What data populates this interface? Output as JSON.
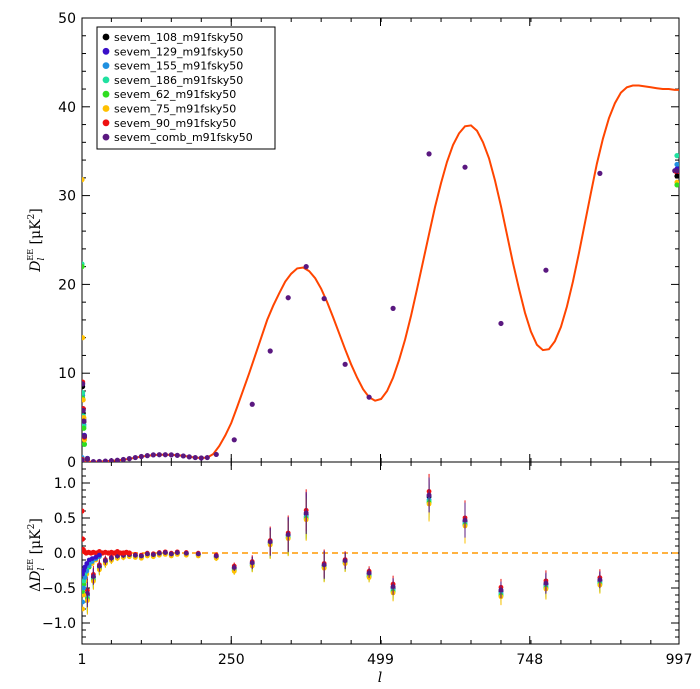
{
  "chart_data": [
    {
      "type": "line",
      "panel": "top",
      "ylabel": "D_l^EE [μK^2]",
      "xlim": [
        1,
        997
      ],
      "ylim": [
        0,
        50
      ],
      "yticks": [
        0,
        10,
        20,
        30,
        40,
        50
      ],
      "xticks": [
        1,
        250,
        499,
        748,
        997
      ],
      "xticklabels": [
        "1",
        "250",
        "499",
        "748",
        "997"
      ],
      "grid": false,
      "legend_position": "top-left",
      "model_color": "#ff4500",
      "model": {
        "x": [
          1,
          2,
          5,
          10,
          20,
          30,
          40,
          50,
          60,
          70,
          80,
          90,
          100,
          110,
          120,
          130,
          140,
          150,
          160,
          170,
          180,
          190,
          200,
          210,
          220,
          230,
          240,
          250,
          260,
          270,
          280,
          290,
          300,
          310,
          320,
          330,
          340,
          350,
          360,
          370,
          380,
          390,
          400,
          410,
          420,
          430,
          440,
          450,
          460,
          470,
          480,
          490,
          500,
          510,
          520,
          530,
          540,
          550,
          560,
          570,
          580,
          590,
          600,
          610,
          620,
          630,
          640,
          650,
          660,
          670,
          680,
          690,
          700,
          710,
          720,
          730,
          740,
          750,
          760,
          770,
          780,
          790,
          800,
          810,
          820,
          830,
          840,
          850,
          860,
          870,
          880,
          890,
          900,
          910,
          920,
          930,
          940,
          950,
          960,
          970,
          980,
          990,
          997
        ],
        "y": [
          0,
          0.02,
          0.04,
          0.03,
          0.02,
          0.05,
          0.08,
          0.12,
          0.18,
          0.26,
          0.36,
          0.48,
          0.6,
          0.7,
          0.78,
          0.82,
          0.82,
          0.8,
          0.76,
          0.7,
          0.6,
          0.5,
          0.45,
          0.5,
          0.9,
          1.8,
          3.0,
          4.4,
          6.2,
          8.1,
          10.0,
          12.0,
          14.0,
          16.0,
          17.6,
          19.0,
          20.3,
          21.2,
          21.8,
          21.9,
          21.5,
          20.7,
          19.5,
          18.0,
          16.3,
          14.5,
          12.7,
          11.0,
          9.5,
          8.2,
          7.3,
          6.9,
          7.1,
          8.0,
          9.5,
          11.5,
          13.8,
          16.5,
          19.5,
          22.6,
          25.7,
          28.7,
          31.4,
          33.8,
          35.7,
          37.0,
          37.8,
          37.9,
          37.3,
          36.0,
          34.2,
          31.7,
          28.8,
          25.6,
          22.4,
          19.5,
          16.8,
          14.7,
          13.2,
          12.6,
          12.7,
          13.6,
          15.2,
          17.5,
          20.3,
          23.5,
          26.9,
          30.3,
          33.6,
          36.4,
          38.7,
          40.4,
          41.6,
          42.2,
          42.4,
          42.4,
          42.3,
          42.2,
          42.1,
          42.0,
          42.0,
          41.9,
          41.9
        ]
      },
      "series": [
        {
          "name": "sevem_108_m91fsky50",
          "color": "#000000",
          "x": [
            1,
            2,
            3,
            4,
            5,
            10
          ],
          "y": [
            0.2,
            8.5,
            5.5,
            4.5,
            2.8,
            0.4
          ]
        },
        {
          "name": "sevem_129_m91fsky50",
          "color": "#3a10c8",
          "x": [
            1,
            2,
            3,
            4,
            5,
            10
          ],
          "y": [
            0.1,
            8.8,
            6.0,
            4.8,
            3.0,
            0.4
          ]
        },
        {
          "name": "sevem_155_m91fsky50",
          "color": "#2090e0",
          "x": [
            1,
            2,
            3,
            4,
            5,
            10
          ],
          "y": [
            0.5,
            7.5,
            5.0,
            4.2,
            2.5,
            0.3
          ]
        },
        {
          "name": "sevem_186_m91fsky50",
          "color": "#20e0a0",
          "x": [
            1,
            2,
            3,
            4,
            5,
            10
          ],
          "y": [
            22.3,
            7.8,
            5.2,
            4.0,
            2.0,
            0.3
          ]
        },
        {
          "name": "sevem_62_m91fsky50",
          "color": "#30dd20",
          "x": [
            1,
            2,
            3,
            4,
            5,
            10
          ],
          "y": [
            22.0,
            7.2,
            4.8,
            3.8,
            2.0,
            0.3
          ]
        },
        {
          "name": "sevem_75_m91fsky50",
          "color": "#ffc000",
          "x": [
            1,
            2,
            3,
            4,
            5,
            10
          ],
          "y": [
            31.8,
            14.0,
            7.0,
            5.0,
            2.5,
            0.3
          ]
        },
        {
          "name": "sevem_90_m91fsky50",
          "color": "#ee1010",
          "x": [
            1,
            2,
            3,
            4,
            5,
            10
          ],
          "y": [
            0.3,
            9.0,
            6.0,
            4.6,
            2.8,
            0.3
          ]
        },
        {
          "name": "sevem_comb_m91fsky50",
          "color": "#5a1880",
          "x": [
            1,
            2,
            3,
            4,
            5,
            10,
            20,
            30,
            40,
            50,
            60,
            70,
            80,
            90,
            100,
            110,
            120,
            130,
            140,
            150,
            160,
            170,
            180,
            190,
            200,
            210,
            225,
            255,
            285,
            315,
            345,
            375,
            405,
            440,
            480,
            520,
            580,
            640,
            700,
            775,
            865,
            990
          ],
          "y": [
            0.2,
            8.8,
            5.8,
            4.6,
            2.9,
            0.3,
            0.05,
            0.06,
            0.1,
            0.14,
            0.2,
            0.28,
            0.38,
            0.5,
            0.62,
            0.72,
            0.8,
            0.82,
            0.82,
            0.8,
            0.75,
            0.68,
            0.58,
            0.5,
            0.45,
            0.5,
            0.85,
            2.5,
            6.5,
            12.5,
            18.5,
            22.0,
            18.4,
            11.0,
            7.3,
            17.3,
            34.7,
            33.2,
            15.6,
            21.6,
            32.5,
            32.8
          ]
        }
      ],
      "edge_points_right": {
        "x": 997,
        "y": [
          34.5,
          33.5,
          33.0,
          32.6,
          32.2,
          31.5,
          31.2,
          32.8
        ],
        "colors": [
          "#20e0a0",
          "#2090e0",
          "#3a10c8",
          "#ee1010",
          "#000000",
          "#ffc000",
          "#30dd20",
          "#5a1880"
        ]
      }
    },
    {
      "type": "scatter",
      "panel": "bottom",
      "xlabel": "l",
      "ylabel": "ΔD_l^EE [μK^2]",
      "xlim": [
        1,
        997
      ],
      "ylim": [
        -1.3,
        1.3
      ],
      "yticks": [
        -1.0,
        -0.5,
        0.0,
        0.5,
        1.0
      ],
      "yticklabels": [
        "−1.0",
        "−0.5",
        "0.0",
        "0.5",
        "1.0"
      ],
      "xticks": [
        1,
        250,
        499,
        748,
        997
      ],
      "xticklabels": [
        "1",
        "250",
        "499",
        "748",
        "997"
      ],
      "zero_line_color": "#ff9900",
      "residuals": {
        "x": [
          10,
          20,
          30,
          40,
          50,
          60,
          70,
          80,
          90,
          100,
          110,
          120,
          130,
          140,
          150,
          160,
          175,
          195,
          225,
          255,
          285,
          315,
          345,
          375,
          405,
          440,
          480,
          520,
          580,
          640,
          700,
          775,
          865
        ],
        "y": [
          -0.6,
          -0.35,
          -0.2,
          -0.12,
          -0.08,
          -0.05,
          -0.04,
          -0.03,
          -0.04,
          -0.05,
          -0.02,
          -0.03,
          -0.01,
          0.0,
          -0.02,
          0.0,
          -0.01,
          -0.02,
          -0.05,
          -0.22,
          -0.15,
          0.15,
          0.25,
          0.55,
          -0.18,
          -0.12,
          -0.3,
          -0.5,
          0.8,
          0.45,
          -0.55,
          -0.45,
          -0.4
        ],
        "err": [
          0.2,
          0.12,
          0.08,
          0.06,
          0.05,
          0.04,
          0.04,
          0.03,
          0.03,
          0.03,
          0.03,
          0.03,
          0.03,
          0.03,
          0.03,
          0.03,
          0.03,
          0.03,
          0.04,
          0.05,
          0.09,
          0.2,
          0.25,
          0.3,
          0.2,
          0.12,
          0.07,
          0.12,
          0.25,
          0.25,
          0.12,
          0.15,
          0.12
        ],
        "offsets": {
          "#000000": 0,
          "#3a10c8": 0.02,
          "#2090e0": -0.04,
          "#20e0a0": -0.06,
          "#30dd20": -0.08,
          "#ffc000": -0.1,
          "#ee1010": 0.08,
          "#5a1880": 0.03
        }
      },
      "low_l_red": {
        "x": [
          1,
          2,
          3,
          5,
          8,
          12,
          16,
          20,
          25,
          30,
          35,
          40,
          45,
          50,
          55,
          60,
          65,
          70,
          75,
          80
        ],
        "y": [
          0.6,
          0.2,
          0.05,
          0.02,
          0.0,
          0.01,
          0.0,
          0.01,
          0.0,
          0.02,
          0.0,
          0.01,
          0.0,
          0.01,
          0.0,
          0.02,
          0.0,
          0.0,
          0.01,
          0.0
        ]
      },
      "low_l_spread": {
        "x": [
          2,
          4,
          6,
          9,
          13,
          18,
          24,
          30
        ],
        "colors": [
          "#ffc000",
          "#30dd20",
          "#20e0a0",
          "#2090e0",
          "#3a10c8"
        ],
        "y": [
          [
            -0.8,
            -0.6,
            -0.4,
            -0.3,
            -0.2,
            -0.15,
            -0.1,
            -0.05
          ],
          [
            -0.55,
            -0.45,
            -0.35,
            -0.25,
            -0.2,
            -0.12,
            -0.08,
            -0.05
          ],
          [
            -0.5,
            -0.4,
            -0.3,
            -0.22,
            -0.16,
            -0.1,
            -0.07,
            -0.04
          ],
          [
            -0.7,
            -0.5,
            -0.35,
            -0.26,
            -0.18,
            -0.12,
            -0.08,
            -0.05
          ],
          [
            -0.3,
            -0.25,
            -0.2,
            -0.15,
            -0.1,
            -0.08,
            -0.06,
            -0.03
          ]
        ]
      }
    }
  ],
  "legend": {
    "items": [
      {
        "label": "sevem_108_m91fsky50",
        "color": "#000000"
      },
      {
        "label": "sevem_129_m91fsky50",
        "color": "#3a10c8"
      },
      {
        "label": "sevem_155_m91fsky50",
        "color": "#2090e0"
      },
      {
        "label": "sevem_186_m91fsky50",
        "color": "#20e0a0"
      },
      {
        "label": "sevem_62_m91fsky50",
        "color": "#30dd20"
      },
      {
        "label": "sevem_75_m91fsky50",
        "color": "#ffc000"
      },
      {
        "label": "sevem_90_m91fsky50",
        "color": "#ee1010"
      },
      {
        "label": "sevem_comb_m91fsky50",
        "color": "#5a1880"
      }
    ]
  }
}
